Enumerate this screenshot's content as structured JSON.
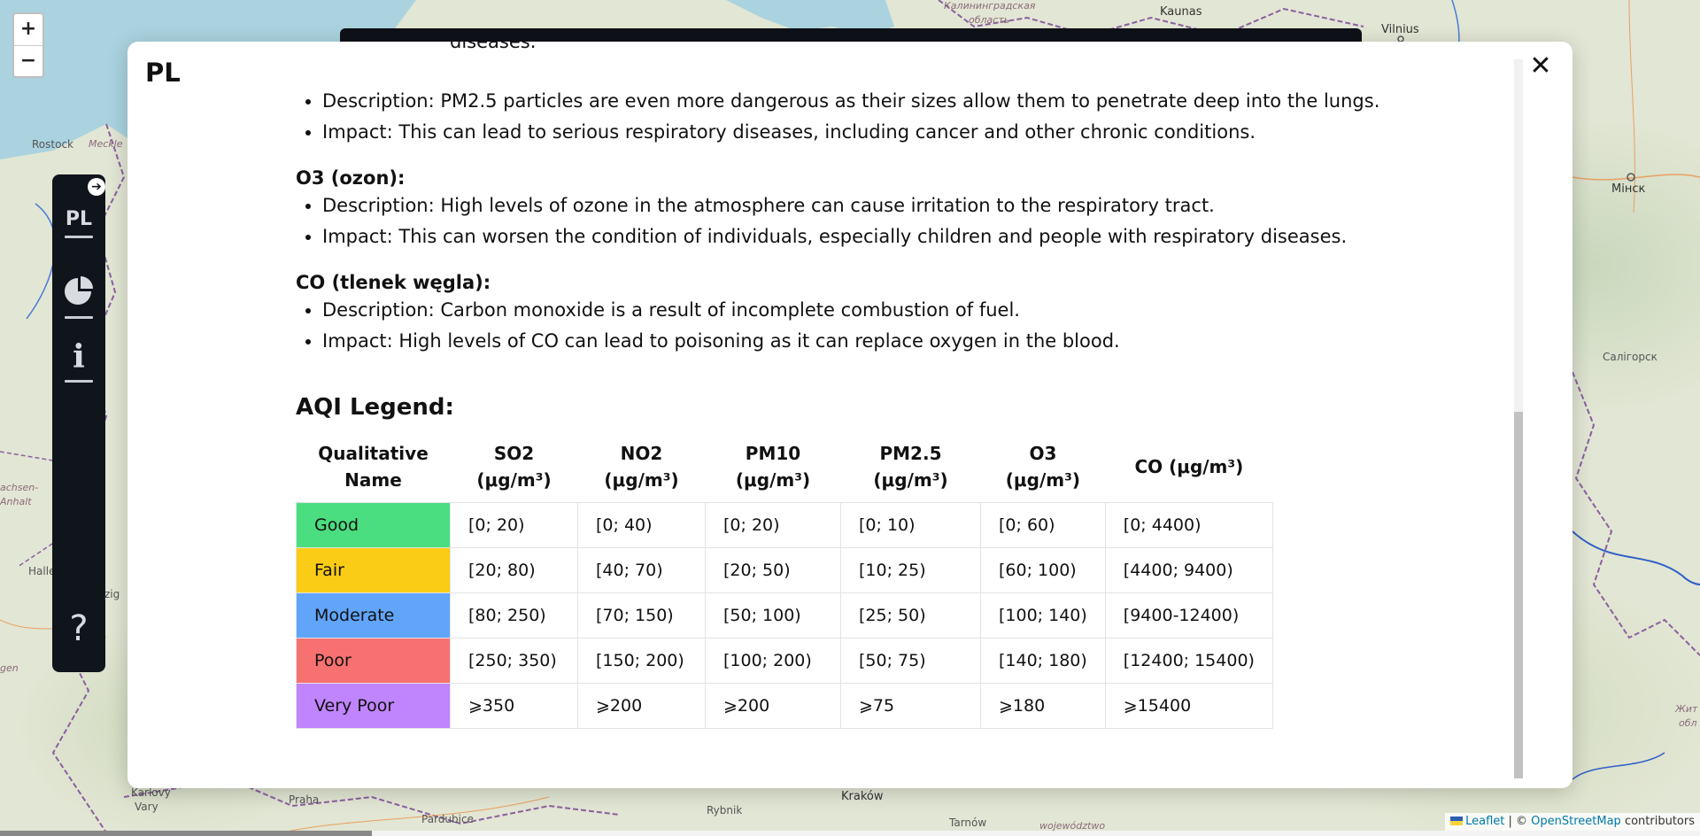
{
  "map": {
    "labels": {
      "kaliningrad": "Калининградская",
      "oblast": "область",
      "kaunas": "Kaunas",
      "vilnius": "Vilnius",
      "rostock": "Rostock",
      "meckle": "Meckle",
      "minsk": "Мінск",
      "saligorsk": "Салігорск",
      "sachsen": "achsen-",
      "anhalt": "Anhalt",
      "halle": "Halle",
      "zig": "zig",
      "gen": "gen",
      "praha": "Praha",
      "karlovy": "Karlovy",
      "vary": "Vary",
      "pardubice": "Pardubice",
      "rybnik": "Rybnik",
      "krakow": "Kraków",
      "tarnow": "Tarnów",
      "wojewodztwo": "województwo",
      "zhyt": "Жит",
      "obl": "обл"
    },
    "zoom": {
      "in": "+",
      "out": "−"
    },
    "attribution": {
      "leaflet": "Leaflet",
      "separator": " | © ",
      "osm": "OpenStreetMap",
      "suffix": " contributors"
    }
  },
  "sidebar": {
    "toggle": "➔",
    "lang": "PL",
    "info": "i",
    "help": "?"
  },
  "modal": {
    "title": "PL",
    "close": "✕",
    "cut_text": "diseases.",
    "pm25_items": [
      "Description: PM2.5 particles are even more dangerous as their sizes allow them to penetrate deep into the lungs.",
      "Impact: This can lead to serious respiratory diseases, including cancer and other chronic conditions."
    ],
    "o3_head": "O3 (ozon):",
    "o3_items": [
      "Description: High levels of ozone in the atmosphere can cause irritation to the respiratory tract.",
      "Impact: This can worsen the condition of individuals, especially children and people with respiratory diseases."
    ],
    "co_head": "CO (tlenek węgla):",
    "co_items": [
      "Description: Carbon monoxide is a result of incomplete combustion of fuel.",
      "Impact: High levels of CO can lead to poisoning as it can replace oxygen in the blood."
    ],
    "legend_title": "AQI Legend:",
    "table": {
      "headers": [
        [
          "Qualitative",
          "Name"
        ],
        [
          "SO2",
          "(μg/m³)"
        ],
        [
          "NO2",
          "(μg/m³)"
        ],
        [
          "PM10",
          "(μg/m³)"
        ],
        [
          "PM2.5",
          "(μg/m³)"
        ],
        [
          "O3",
          "(μg/m³)"
        ],
        [
          "CO (μg/m³)",
          ""
        ]
      ],
      "rows": [
        {
          "name": "Good",
          "color": "#4ade80",
          "values": [
            "[0; 20)",
            "[0; 40)",
            "[0; 20)",
            "[0; 10)",
            "[0; 60)",
            "[0; 4400)"
          ]
        },
        {
          "name": "Fair",
          "color": "#facc15",
          "values": [
            "[20; 80)",
            "[40; 70)",
            "[20; 50)",
            "[10; 25)",
            "[60; 100)",
            "[4400; 9400)"
          ]
        },
        {
          "name": "Moderate",
          "color": "#60a5fa",
          "values": [
            "[80; 250)",
            "[70; 150)",
            "[50; 100)",
            "[25; 50)",
            "[100; 140)",
            "[9400-12400)"
          ]
        },
        {
          "name": "Poor",
          "color": "#f87171",
          "values": [
            "[250; 350)",
            "[150; 200)",
            "[100; 200)",
            "[50; 75)",
            "[140; 180)",
            "[12400; 15400)"
          ]
        },
        {
          "name": "Very Poor",
          "color": "#c084fc",
          "values": [
            "⩾350",
            "⩾200",
            "⩾200",
            "⩾75",
            "⩾180",
            "⩾15400"
          ]
        }
      ]
    }
  }
}
